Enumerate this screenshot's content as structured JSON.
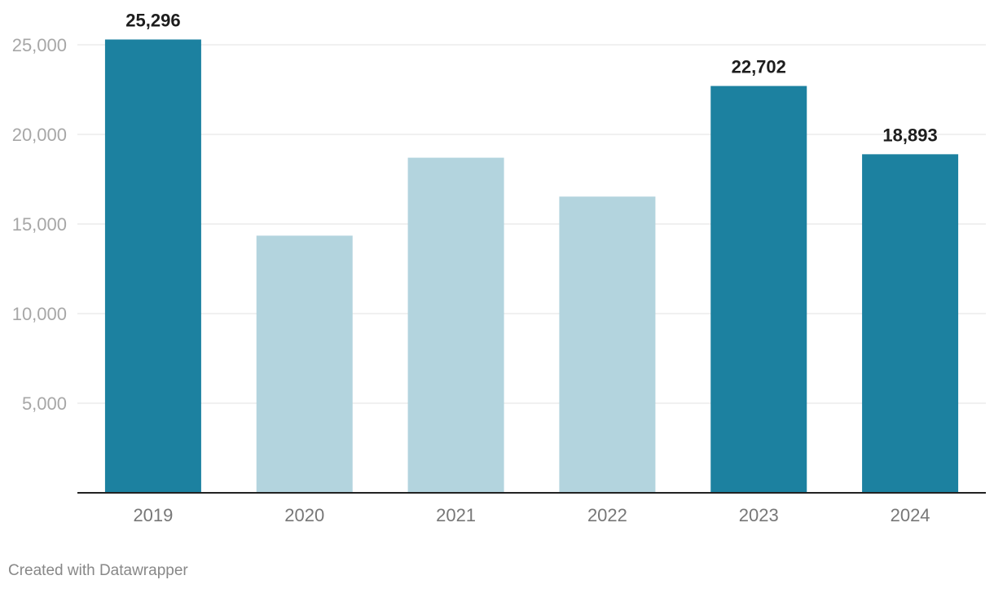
{
  "chart_data": {
    "type": "bar",
    "title": "",
    "xlabel": "",
    "ylabel": "",
    "categories": [
      "2019",
      "2020",
      "2021",
      "2022",
      "2023",
      "2024"
    ],
    "values": [
      25296,
      14350,
      18700,
      16530,
      22702,
      18893
    ],
    "value_labels": [
      "25,296",
      "",
      "",
      "",
      "22,702",
      "18,893"
    ],
    "highlighted": [
      true,
      false,
      false,
      false,
      true,
      true
    ],
    "ylim": [
      0,
      25000
    ],
    "yticks": [
      5000,
      10000,
      15000,
      20000,
      25000
    ],
    "ytick_labels": [
      "5,000",
      "10,000",
      "15,000",
      "20,000",
      "25,000"
    ],
    "grid": true,
    "colors": {
      "highlight": "#1c81a0",
      "muted": "#b3d4de"
    }
  },
  "footer": {
    "credit": "Created with Datawrapper"
  }
}
